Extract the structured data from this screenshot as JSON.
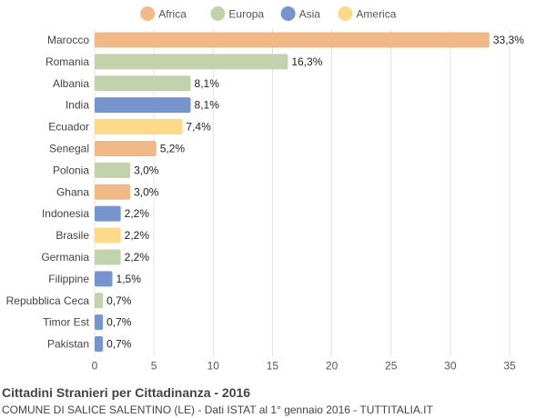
{
  "chart_data": {
    "type": "bar",
    "orientation": "horizontal",
    "title": "Cittadini Stranieri per Cittadinanza - 2016",
    "subtitle": "COMUNE DI SALICE SALENTINO (LE) - Dati ISTAT al 1° gennaio 2016 - TUTTITALIA.IT",
    "xlim": [
      0,
      35
    ],
    "xticks": [
      0,
      5,
      10,
      15,
      20,
      25,
      30,
      35
    ],
    "grid": true,
    "legend_position": "top",
    "legend": [
      {
        "name": "Africa",
        "color": "#f0b987"
      },
      {
        "name": "Europa",
        "color": "#c2d2ad"
      },
      {
        "name": "Asia",
        "color": "#7595cc"
      },
      {
        "name": "America",
        "color": "#fdd98a"
      }
    ],
    "categories": [
      "Marocco",
      "Romania",
      "Albania",
      "India",
      "Ecuador",
      "Senegal",
      "Polonia",
      "Ghana",
      "Indonesia",
      "Brasile",
      "Germania",
      "Filippine",
      "Repubblica Ceca",
      "Timor Est",
      "Pakistan"
    ],
    "values": [
      33.3,
      16.3,
      8.1,
      8.1,
      7.4,
      5.2,
      3.0,
      3.0,
      2.2,
      2.2,
      2.2,
      1.5,
      0.7,
      0.7,
      0.7
    ],
    "value_labels": [
      "33,3%",
      "16,3%",
      "8,1%",
      "8,1%",
      "7,4%",
      "5,2%",
      "3,0%",
      "3,0%",
      "2,2%",
      "2,2%",
      "2,2%",
      "1,5%",
      "0,7%",
      "0,7%",
      "0,7%"
    ],
    "groups": [
      "Africa",
      "Europa",
      "Europa",
      "Asia",
      "America",
      "Africa",
      "Europa",
      "Africa",
      "Asia",
      "America",
      "Europa",
      "Asia",
      "Europa",
      "Asia",
      "Asia"
    ]
  }
}
